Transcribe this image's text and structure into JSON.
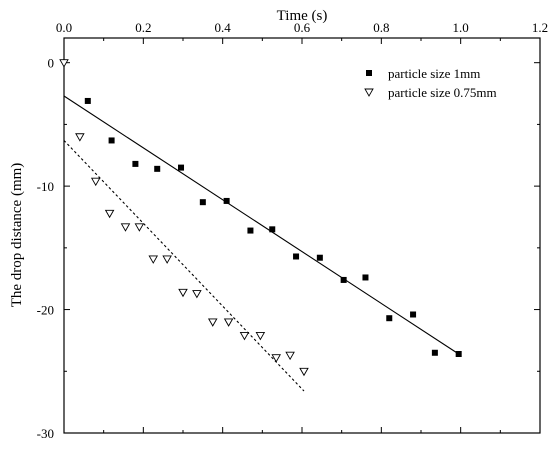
{
  "chart_data": {
    "type": "scatter",
    "title": "",
    "xlabel": "Time (s)",
    "ylabel": "The drop distance (mm)",
    "xlim": [
      0.0,
      1.2
    ],
    "ylim": [
      -30,
      2
    ],
    "x_ticks": [
      0.0,
      0.2,
      0.4,
      0.6,
      0.8,
      1.0,
      1.2
    ],
    "x_tick_labels": [
      "0.0",
      "0.2",
      "0.4",
      "0.6",
      "0.8",
      "1.0",
      "1.2"
    ],
    "y_ticks": [
      0,
      -10,
      -20,
      -30
    ],
    "y_tick_labels": [
      "0",
      "-10",
      "-20",
      "-30"
    ],
    "x_axis_position": "top",
    "grid": false,
    "legend_position": "top-right",
    "series": [
      {
        "name": "particle size 1mm",
        "marker": "filled-square",
        "color": "#000000",
        "x": [
          0.06,
          0.12,
          0.18,
          0.235,
          0.295,
          0.35,
          0.41,
          0.47,
          0.525,
          0.585,
          0.645,
          0.705,
          0.76,
          0.82,
          0.88,
          0.935,
          0.995
        ],
        "y": [
          -3.1,
          -6.3,
          -8.2,
          -8.6,
          -8.5,
          -11.3,
          -11.2,
          -13.6,
          -13.5,
          -15.7,
          -15.8,
          -17.6,
          -17.4,
          -20.7,
          -20.4,
          -23.5,
          -23.6
        ],
        "fit": {
          "style": "solid",
          "x": [
            0.0,
            0.995
          ],
          "y": [
            -2.7,
            -23.6
          ]
        }
      },
      {
        "name": "particle size 0.75mm",
        "marker": "open-triangle-down",
        "color": "#000000",
        "x": [
          0.0,
          0.04,
          0.08,
          0.115,
          0.155,
          0.19,
          0.225,
          0.26,
          0.3,
          0.335,
          0.375,
          0.415,
          0.455,
          0.495,
          0.535,
          0.57,
          0.605
        ],
        "y": [
          0.0,
          -6.0,
          -9.6,
          -12.2,
          -13.3,
          -13.3,
          -15.9,
          -15.9,
          -18.6,
          -18.7,
          -21.0,
          -21.0,
          -22.1,
          -22.1,
          -23.9,
          -23.7,
          -25.0
        ],
        "fit": {
          "style": "dotted",
          "x": [
            0.0,
            0.605
          ],
          "y": [
            -6.3,
            -26.6
          ]
        }
      }
    ]
  }
}
